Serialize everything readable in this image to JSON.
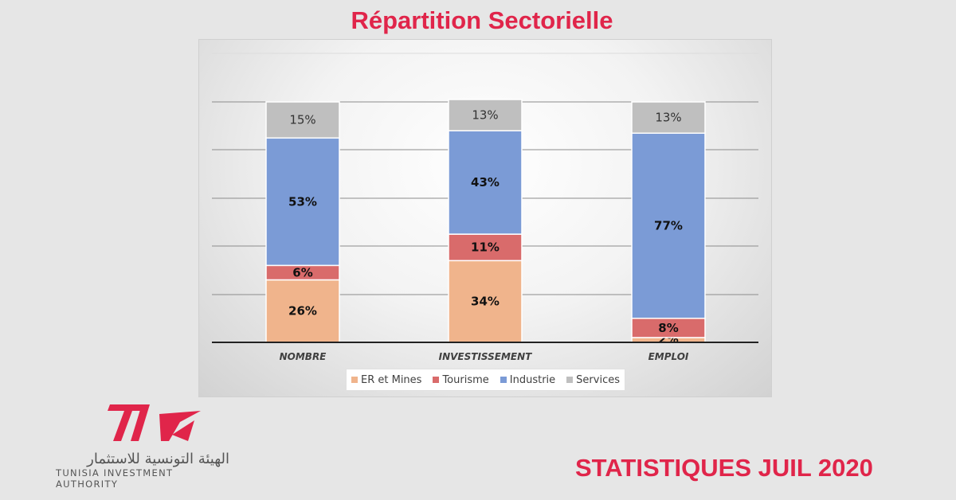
{
  "title": "Répartition Sectorielle",
  "footer": {
    "stat_label": "STATISTIQUES JUIL 2020"
  },
  "logo": {
    "mark_text": "TIA",
    "arabic": "الهيئة التونسية للاستثمار",
    "english": "TUNISIA INVESTMENT AUTHORITY"
  },
  "colors": {
    "accent": "#e0254a",
    "er_mines": "#f0b48c",
    "tourisme": "#d96b6b",
    "industrie": "#7b9bd6",
    "services": "#bfbfbf"
  },
  "chart_data": {
    "type": "bar",
    "stacked": true,
    "normalized": true,
    "categories": [
      "NOMBRE",
      "INVESTISSEMENT",
      "EMPLOI"
    ],
    "series": [
      {
        "name": "ER et Mines",
        "values": [
          26,
          34,
          2
        ],
        "labels": [
          "26%",
          "34%",
          "2%"
        ],
        "color": "#f0b48c"
      },
      {
        "name": "Tourisme",
        "values": [
          6,
          11,
          8
        ],
        "labels": [
          "6%",
          "11%",
          "8%"
        ],
        "color": "#d96b6b"
      },
      {
        "name": "Industrie",
        "values": [
          53,
          43,
          77
        ],
        "labels": [
          "53%",
          "43%",
          "77%"
        ],
        "color": "#7b9bd6"
      },
      {
        "name": "Services",
        "values": [
          15,
          13,
          13
        ],
        "labels": [
          "15%",
          "13%",
          "13%"
        ],
        "color": "#bfbfbf"
      }
    ],
    "ylim": [
      0,
      100
    ],
    "grid": true,
    "legend": "bottom"
  }
}
